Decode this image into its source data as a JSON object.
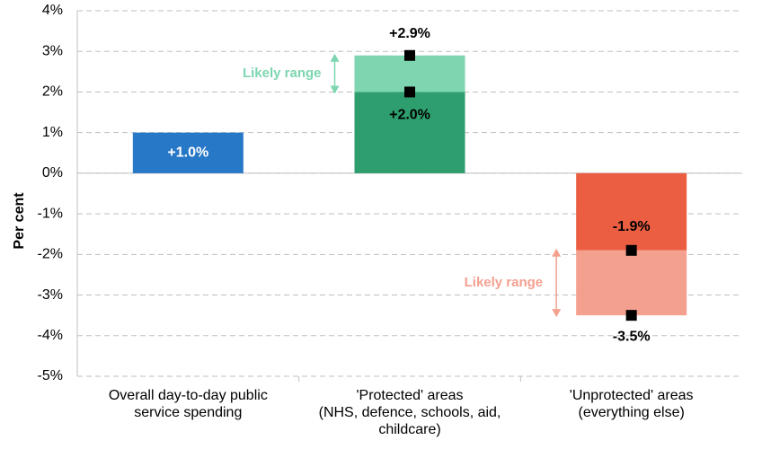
{
  "chart_data": {
    "type": "bar",
    "y_label": "Per cent",
    "categories": [
      "Overall day-to-day public\nservice spending",
      "'Protected' areas\n(NHS, defence, schools, aid,\nchildcare)",
      "'Unprotected' areas\n(everything else)"
    ],
    "values": [
      1.0,
      2.0,
      -1.9
    ],
    "value_labels": [
      "+1.0%",
      "+2.0%",
      "-1.9%"
    ],
    "colors": [
      "#2878c8",
      "#2e9e6e",
      "#eb5e42"
    ],
    "range_end": [
      null,
      2.9,
      -3.5
    ],
    "range_end_labels": [
      null,
      "+2.9%",
      "-3.5%"
    ],
    "range_colors": [
      null,
      "#7dd6b0",
      "#f4a08f"
    ],
    "range_notes": [
      null,
      "Likely range",
      "Likely range"
    ],
    "ylim": [
      -5,
      4
    ],
    "yticks": [
      {
        "value": -5,
        "label": "-5%"
      },
      {
        "value": -4,
        "label": "-4%"
      },
      {
        "value": -3,
        "label": "-3%"
      },
      {
        "value": -2,
        "label": "-2%"
      },
      {
        "value": -1,
        "label": "-1%"
      },
      {
        "value": 0,
        "label": "0%"
      },
      {
        "value": 1,
        "label": "1%"
      },
      {
        "value": 2,
        "label": "2%"
      },
      {
        "value": 3,
        "label": "3%"
      },
      {
        "value": 4,
        "label": "4%"
      }
    ],
    "grid": true
  }
}
